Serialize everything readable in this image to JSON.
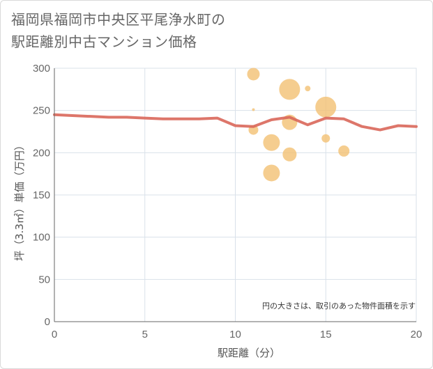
{
  "title_line1": "福岡県福岡市中央区平尾浄水町の",
  "title_line2": "駅距離別中古マンション価格",
  "chart_data": {
    "type": "scatter",
    "xlabel": "駅距離（分）",
    "ylabel": "坪（3.3㎡）単価（万円）",
    "xlim": [
      0,
      20
    ],
    "ylim": [
      0,
      300
    ],
    "xticks": [
      0,
      5,
      10,
      15,
      20
    ],
    "yticks": [
      0,
      50,
      100,
      150,
      200,
      250,
      300
    ],
    "grid": true,
    "note": "円の大きさは、取引のあった物件面積を示す",
    "bubbles": [
      {
        "x": 11,
        "y": 293,
        "size": 9
      },
      {
        "x": 11,
        "y": 251,
        "size": 2
      },
      {
        "x": 11,
        "y": 227,
        "size": 7
      },
      {
        "x": 12,
        "y": 212,
        "size": 12
      },
      {
        "x": 12,
        "y": 176,
        "size": 12
      },
      {
        "x": 13,
        "y": 275,
        "size": 15
      },
      {
        "x": 13,
        "y": 236,
        "size": 11
      },
      {
        "x": 13,
        "y": 198,
        "size": 10
      },
      {
        "x": 14,
        "y": 276,
        "size": 4
      },
      {
        "x": 15,
        "y": 254,
        "size": 15
      },
      {
        "x": 15,
        "y": 217,
        "size": 6
      },
      {
        "x": 16,
        "y": 202,
        "size": 8
      }
    ],
    "series": [
      {
        "name": "trend",
        "x": [
          0,
          1,
          2,
          3,
          4,
          5,
          6,
          7,
          8,
          9,
          10,
          11,
          12,
          13,
          14,
          15,
          16,
          17,
          18,
          19,
          20
        ],
        "values": [
          245,
          244,
          243,
          242,
          242,
          241,
          240,
          240,
          240,
          241,
          232,
          231,
          239,
          242,
          233,
          241,
          240,
          231,
          227,
          232,
          231
        ]
      }
    ],
    "colors": {
      "bubble": "#f2c173",
      "line": "#d9675a",
      "grid": "#d9e1ea"
    }
  }
}
